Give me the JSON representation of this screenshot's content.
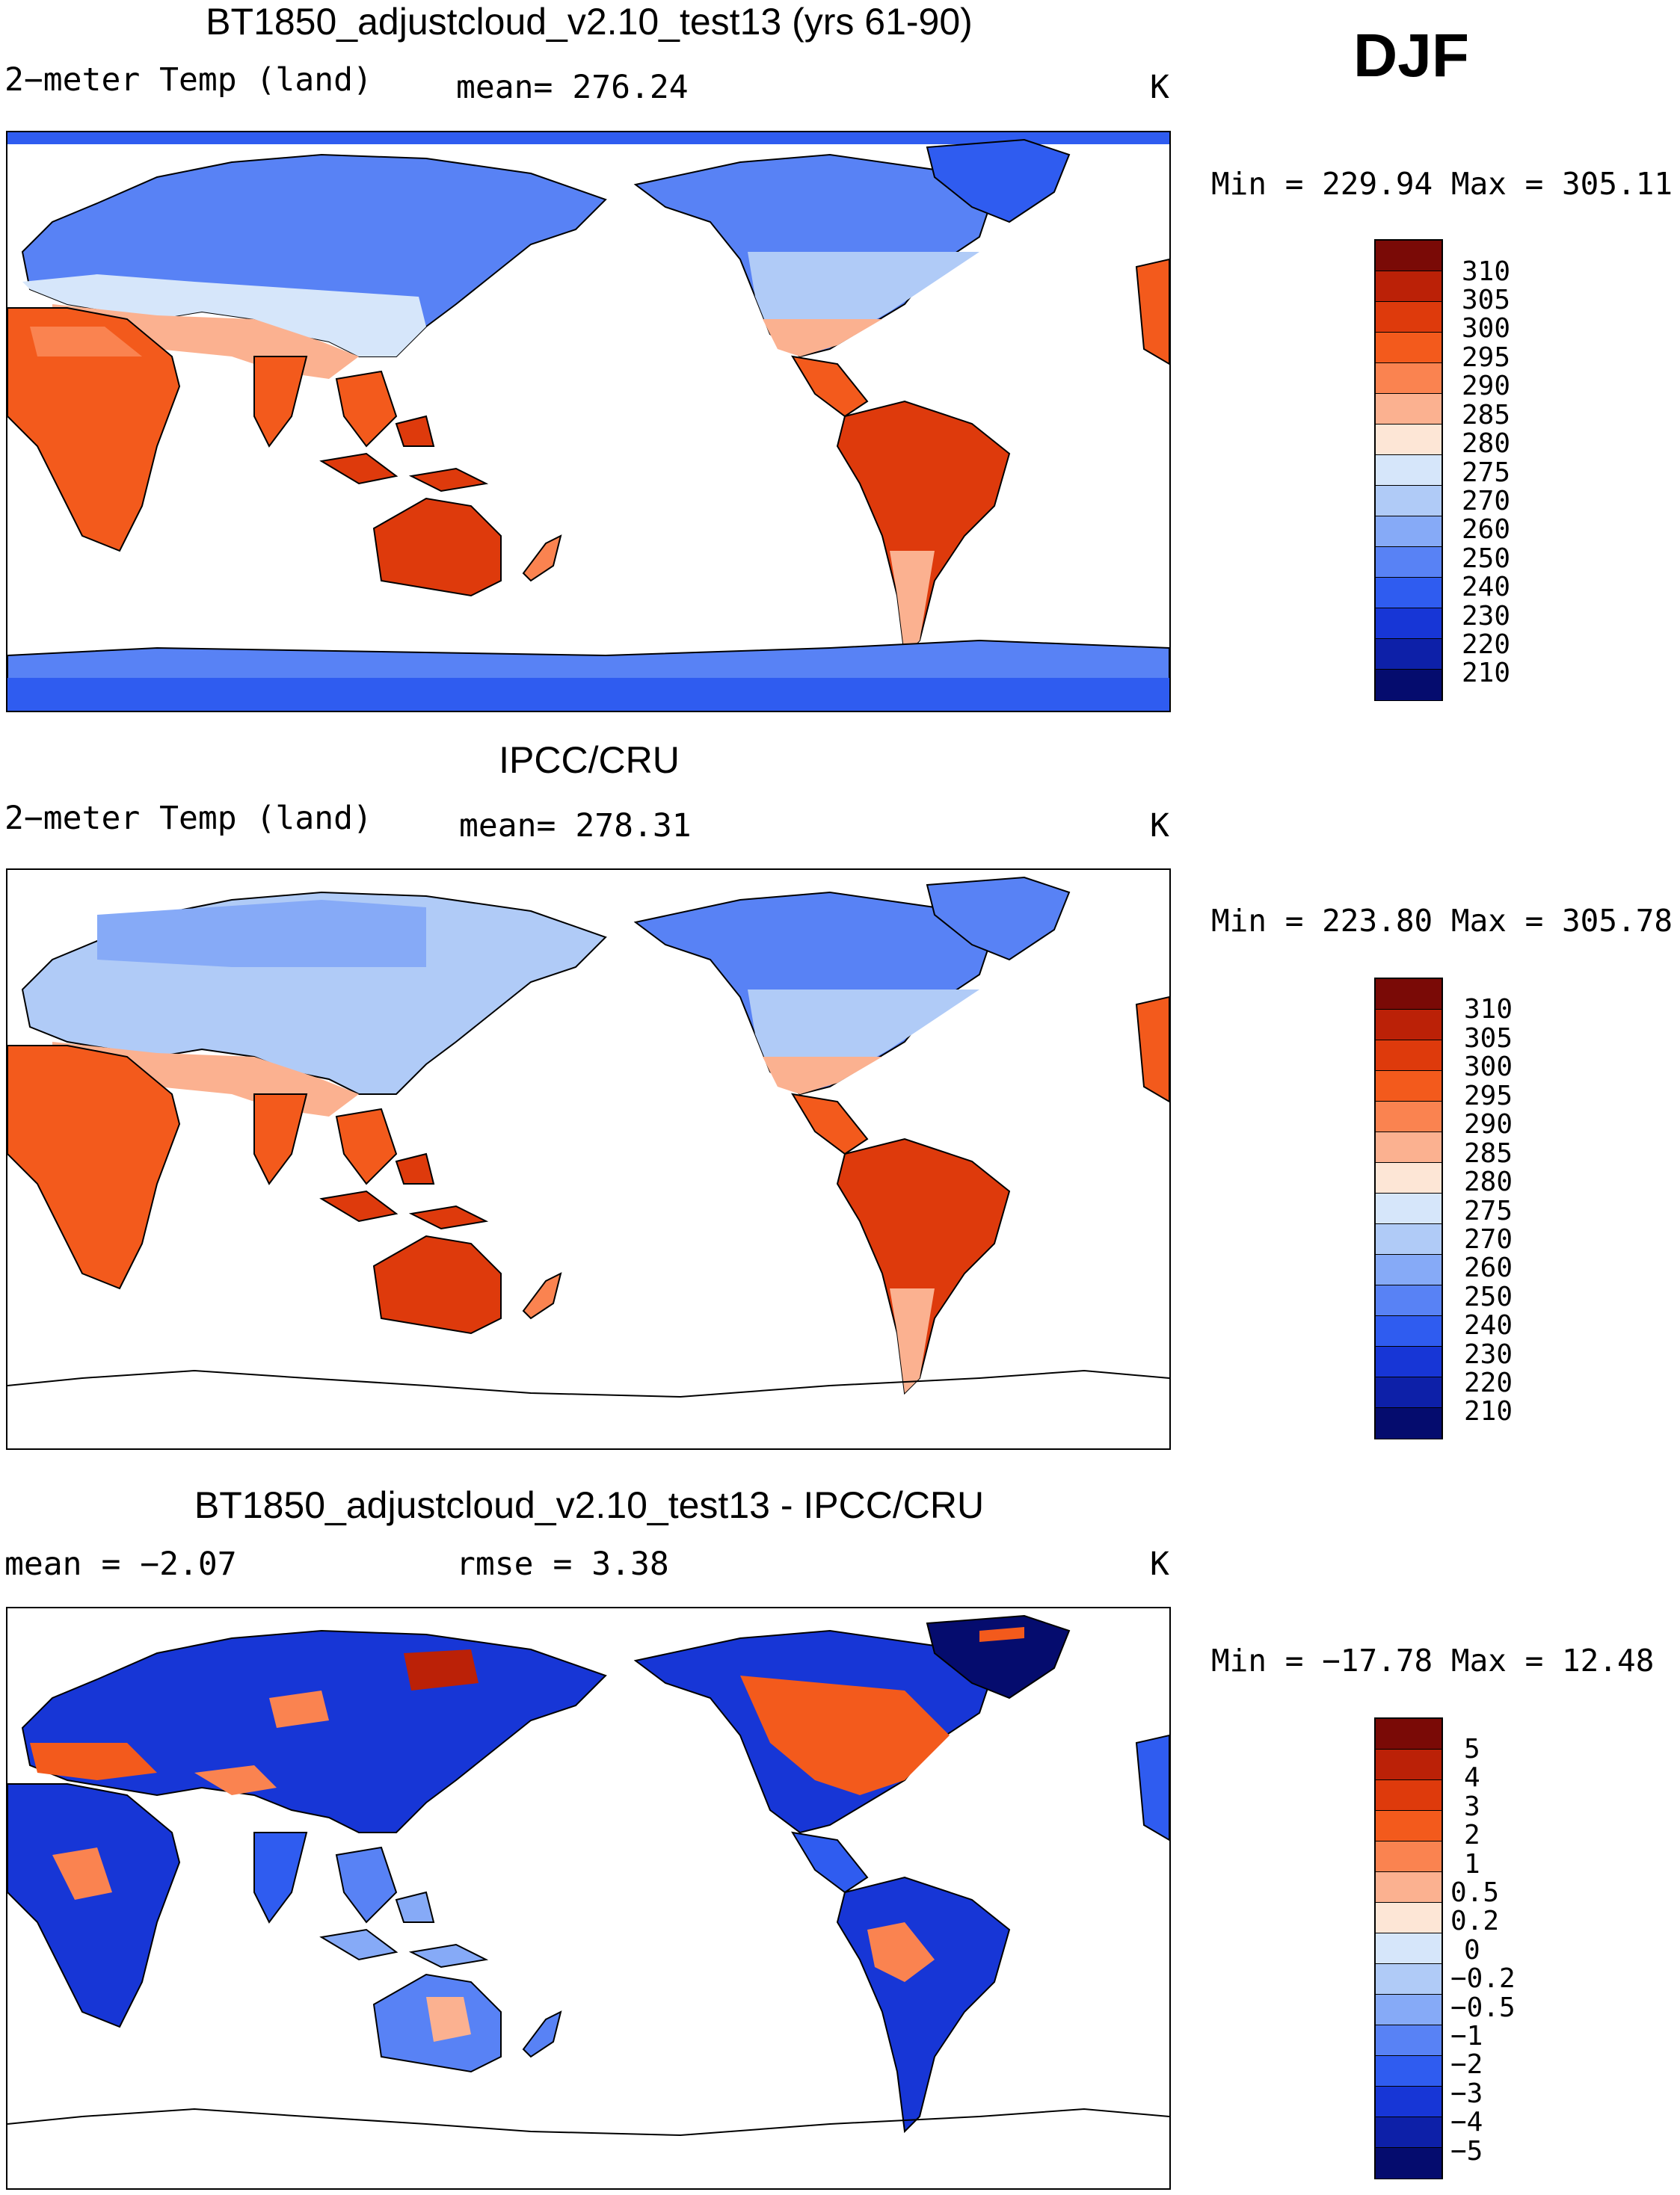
{
  "season": "DJF",
  "units": "K",
  "panels": [
    {
      "title": "BT1850_adjustcloud_v2.10_test13 (yrs 61-90)",
      "variable": "2−meter Temp (land)",
      "stat_text": "mean= 276.24",
      "units": "K",
      "minmax": "Min = 229.94 Max = 305.11"
    },
    {
      "title": "IPCC/CRU",
      "variable": "2−meter Temp (land)",
      "stat_text": "mean= 278.31",
      "units": "K",
      "minmax": "Min = 223.80 Max = 305.78"
    },
    {
      "title": "BT1850_adjustcloud_v2.10_test13 - IPCC/CRU",
      "variable": "mean =  −2.07",
      "stat_text": "rmse =    3.38",
      "units": "K",
      "minmax": "Min = −17.78 Max =  12.48"
    }
  ],
  "chart_data": [
    {
      "type": "heatmap",
      "title": "BT1850_adjustcloud_v2.10_test13 (yrs 61-90)",
      "variable": "2-meter Temp (land)",
      "mean": 276.24,
      "min": 229.94,
      "max": 305.11,
      "units": "K",
      "colorbar_levels": [
        "310",
        "305",
        "300",
        "295",
        "290",
        "285",
        "280",
        "275",
        "270",
        "260",
        "250",
        "240",
        "230",
        "220",
        "210"
      ]
    },
    {
      "type": "heatmap",
      "title": "IPCC/CRU",
      "variable": "2-meter Temp (land)",
      "mean": 278.31,
      "min": 223.8,
      "max": 305.78,
      "units": "K",
      "colorbar_levels": [
        "310",
        "305",
        "300",
        "295",
        "290",
        "285",
        "280",
        "275",
        "270",
        "260",
        "250",
        "240",
        "230",
        "220",
        "210"
      ]
    },
    {
      "type": "heatmap",
      "title": "BT1850_adjustcloud_v2.10_test13 - IPCC/CRU",
      "mean": -2.07,
      "rmse": 3.38,
      "min": -17.78,
      "max": 12.48,
      "units": "K",
      "colorbar_levels": [
        "5",
        "4",
        "3",
        "2",
        "1",
        "0.5",
        "0.2",
        "0",
        "−0.2",
        "−0.5",
        "−1",
        "−2",
        "−3",
        "−4",
        "−5"
      ]
    }
  ],
  "colors": {
    "temp": [
      "#7a0a06",
      "#bb2107",
      "#de3a0c",
      "#f35a1c",
      "#fa8350",
      "#fbb190",
      "#fde6d6",
      "#d6e6fa",
      "#b0cbf7",
      "#86aaf7",
      "#5882f5",
      "#2f5cf0",
      "#1736d6",
      "#0d20a8",
      "#050c6e"
    ],
    "diff": [
      "#7a0a06",
      "#bb2107",
      "#de3a0c",
      "#f35a1c",
      "#fa8350",
      "#fbb190",
      "#fde6d6",
      "#d6e6fa",
      "#b0cbf7",
      "#86aaf7",
      "#5882f5",
      "#2f5cf0",
      "#1736d6",
      "#0d20a8",
      "#050c6e"
    ]
  }
}
